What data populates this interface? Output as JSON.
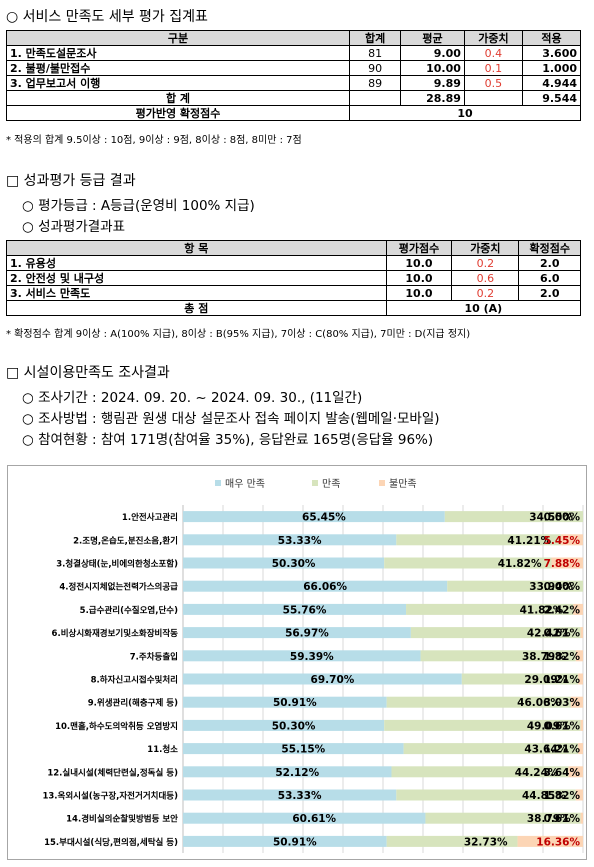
{
  "section1": {
    "heading": "○ 서비스 만족도 세부 평가 집계표",
    "headers": [
      "구분",
      "합계",
      "평균",
      "가중치",
      "적용"
    ],
    "rows": [
      {
        "name": "1. 만족도설문조사",
        "total": "81",
        "avg": "9.00",
        "weight": "0.4",
        "applied": "3.600"
      },
      {
        "name": "2. 불평/불만접수",
        "total": "90",
        "avg": "10.00",
        "weight": "0.1",
        "applied": "1.000"
      },
      {
        "name": "3. 업무보고서 이행",
        "total": "89",
        "avg": "9.89",
        "weight": "0.5",
        "applied": "4.944"
      }
    ],
    "sum_label": "합 계",
    "sum_avg": "28.89",
    "sum_applied": "9.544",
    "final_label": "평가반영 확정점수",
    "final_value": "10",
    "note": "* 적용의 합계 9.5이상 : 10점, 9이상 : 9점, 8이상 : 8점, 8미만 : 7점"
  },
  "section2": {
    "heading": "□ 성과평가 등급 결과",
    "bullet1": "○ 평가등급 : A등급(운영비 100% 지급)",
    "bullet2": "○ 성과평가결과표",
    "headers": [
      "항 목",
      "평가점수",
      "가중치",
      "확정점수"
    ],
    "rows": [
      {
        "name": "1. 유용성",
        "score": "10.0",
        "weight": "0.2",
        "final": "2.0"
      },
      {
        "name": "2. 안전성 및 내구성",
        "score": "10.0",
        "weight": "0.6",
        "final": "6.0"
      },
      {
        "name": "3. 서비스 만족도",
        "score": "10.0",
        "weight": "0.2",
        "final": "2.0"
      }
    ],
    "total_label": "총 점",
    "total_value": "10 (A)",
    "note": "* 확정점수 합계 9이상 : A(100% 지급), 8이상 : B(95% 지급), 7이상 : C(80% 지급), 7미만 : D(지급 정지)"
  },
  "section3": {
    "heading": "□ 시설이용만족도 조사결과",
    "bullet1": "○ 조사기간 : 2024. 09. 20. ~ 2024. 09. 30., (11일간)",
    "bullet2": "○ 조사방법 : 행림관 원생 대상 설문조사 접속 페이지 발송(웹메일·모바일)",
    "bullet3": "○ 참여현황 : 참여 171명(참여율 35%), 응답완료 165명(응답율 96%)"
  },
  "chart_data": {
    "type": "bar",
    "orientation": "horizontal-stacked-100",
    "categories": [
      "1.안전사고관리",
      "2.조명,온습도,분진소음,환기",
      "3.청결상태(눈,비에의한청소포함)",
      "4.정전시지체없는전력가스의공급",
      "5.급수관리(수질오염,단수)",
      "6.비상시화재경보기및소화장비작동",
      "7.주차등출입",
      "8.하자신고시접수및처리",
      "9.위생관리(해충구제 등)",
      "10.맨홀,하수도의악취등 오염방지",
      "11.청소",
      "12.실내시설(체력단련실,정독실 등)",
      "13.옥외시설(농구장,자전거거치대등)",
      "14.경비실의순찰및방범등 보안",
      "15.부대시설(식당,편의점,세탁실 등)"
    ],
    "series": [
      {
        "name": "매우 만족",
        "color": "#b7dde8",
        "values": [
          65.45,
          53.33,
          50.3,
          66.06,
          55.76,
          56.97,
          59.39,
          69.7,
          50.91,
          50.3,
          55.15,
          52.12,
          53.33,
          60.61,
          50.91
        ]
      },
      {
        "name": "만족",
        "color": "#d7e4bd",
        "values": [
          34.55,
          41.21,
          41.82,
          33.94,
          41.82,
          42.42,
          38.79,
          29.09,
          46.06,
          49.09,
          43.64,
          44.24,
          44.85,
          38.79,
          32.73
        ]
      },
      {
        "name": "불만족",
        "color": "#fcd5b5",
        "values": [
          0.0,
          5.45,
          7.88,
          0.0,
          2.42,
          0.61,
          1.82,
          1.21,
          3.03,
          0.61,
          1.21,
          3.64,
          1.82,
          0.61,
          16.36
        ]
      }
    ],
    "labels": [
      [
        "65.45%",
        "34.55%",
        "0.00%"
      ],
      [
        "53.33%",
        "41.21%",
        "5.45%"
      ],
      [
        "50.30%",
        "41.82%",
        "7.88%"
      ],
      [
        "66.06%",
        "33.94%",
        "0.00%"
      ],
      [
        "55.76%",
        "41.82%",
        "2.42%"
      ],
      [
        "56.97%",
        "42.42%",
        "0.61%"
      ],
      [
        "59.39%",
        "38.79%",
        "1.82%"
      ],
      [
        "69.70%",
        "29.09%",
        "1.21%"
      ],
      [
        "50.91%",
        "46.06%",
        "3.03%"
      ],
      [
        "50.30%",
        "49.09%",
        "0.61%"
      ],
      [
        "55.15%",
        "43.64%",
        "1.21%"
      ],
      [
        "52.12%",
        "44.24%",
        "3.64%"
      ],
      [
        "53.33%",
        "44.85%",
        "1.82%"
      ],
      [
        "60.61%",
        "38.79%",
        "0.61%"
      ],
      [
        "50.91%",
        "32.73%",
        "16.36%"
      ]
    ],
    "xlim": [
      0,
      100
    ],
    "legend_position": "top",
    "grid": true
  }
}
